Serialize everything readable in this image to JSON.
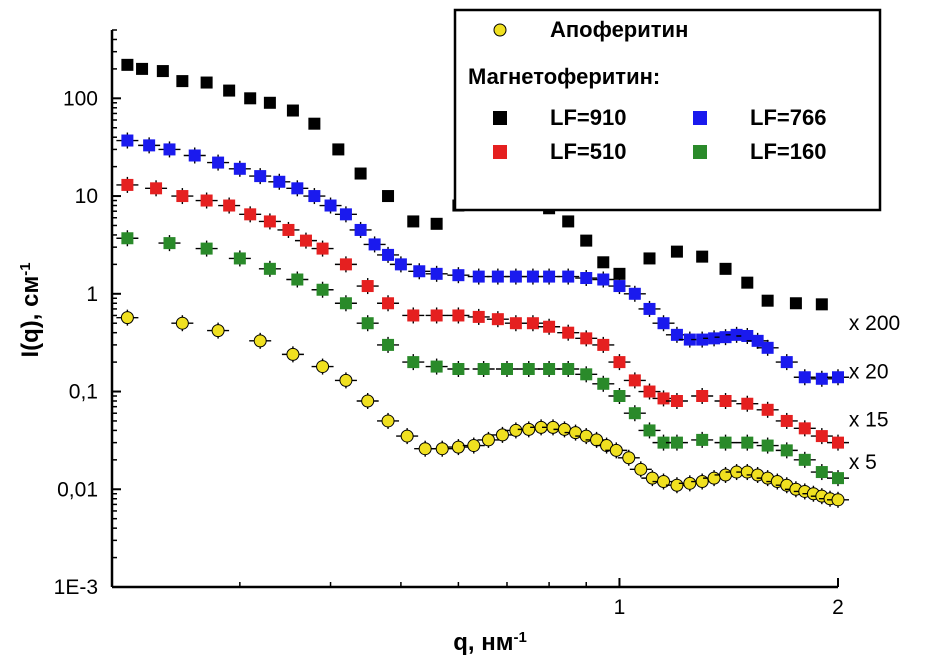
{
  "chart_data": {
    "type": "scatter",
    "xscale": "log",
    "yscale": "log",
    "xlim": [
      0.2,
      2
    ],
    "ylim": [
      0.001,
      500
    ],
    "xticks": [
      {
        "value": 1,
        "label": "1"
      },
      {
        "value": 2,
        "label": "2"
      }
    ],
    "yticks": [
      {
        "value": 100,
        "label": "100"
      },
      {
        "value": 10,
        "label": "10"
      },
      {
        "value": 1,
        "label": "1"
      },
      {
        "value": 0.1,
        "label": "0,1"
      },
      {
        "value": 0.01,
        "label": "0,01"
      },
      {
        "value": 0.001,
        "label": "1E-3"
      }
    ],
    "xlabel": "q, нм",
    "xlabel_sup": "-1",
    "ylabel": "I(q), см",
    "ylabel_sup": "-1",
    "grid": false,
    "legend": {
      "position": "top-right",
      "header": "Магнетоферитин:",
      "entries": [
        {
          "series": 0,
          "label": "Апоферитин"
        },
        {
          "series": 1,
          "label": "LF=910"
        },
        {
          "series": 2,
          "label": "LF=766"
        },
        {
          "series": 3,
          "label": "LF=510"
        },
        {
          "series": 4,
          "label": "LF=160"
        }
      ]
    },
    "annotations": [
      {
        "text": "x 200",
        "x": 1.98,
        "y": 0.5
      },
      {
        "text": "x 20",
        "x": 1.98,
        "y": 0.16
      },
      {
        "text": "x 15",
        "x": 1.98,
        "y": 0.052
      },
      {
        "text": "x 5",
        "x": 1.98,
        "y": 0.019
      }
    ],
    "series": [
      {
        "name": "Апоферитин",
        "marker": "circle",
        "color": "#f0e020",
        "errorbars": true,
        "x": [
          0.21,
          0.25,
          0.28,
          0.32,
          0.355,
          0.39,
          0.42,
          0.45,
          0.48,
          0.51,
          0.54,
          0.57,
          0.6,
          0.63,
          0.66,
          0.69,
          0.72,
          0.75,
          0.78,
          0.81,
          0.84,
          0.87,
          0.9,
          0.93,
          0.96,
          0.99,
          1.03,
          1.07,
          1.11,
          1.15,
          1.2,
          1.25,
          1.3,
          1.35,
          1.4,
          1.45,
          1.5,
          1.55,
          1.6,
          1.65,
          1.7,
          1.75,
          1.8,
          1.85,
          1.9,
          1.95,
          2.0
        ],
        "y": [
          0.57,
          0.5,
          0.42,
          0.33,
          0.24,
          0.18,
          0.13,
          0.08,
          0.05,
          0.035,
          0.026,
          0.026,
          0.027,
          0.028,
          0.032,
          0.036,
          0.04,
          0.041,
          0.043,
          0.043,
          0.041,
          0.038,
          0.035,
          0.032,
          0.028,
          0.025,
          0.021,
          0.016,
          0.013,
          0.012,
          0.011,
          0.0115,
          0.012,
          0.013,
          0.014,
          0.015,
          0.015,
          0.014,
          0.013,
          0.012,
          0.011,
          0.01,
          0.0095,
          0.009,
          0.0085,
          0.008,
          0.0078
        ]
      },
      {
        "name": "LF=910",
        "marker": "square",
        "color": "#000000",
        "errorbars": false,
        "x": [
          0.21,
          0.22,
          0.235,
          0.25,
          0.27,
          0.29,
          0.31,
          0.33,
          0.355,
          0.38,
          0.41,
          0.44,
          0.48,
          0.52,
          0.56,
          0.6,
          0.65,
          0.7,
          0.75,
          0.8,
          0.85,
          0.9,
          0.95,
          1.0,
          1.1,
          1.2,
          1.3,
          1.4,
          1.5,
          1.6,
          1.75,
          1.9
        ],
        "y": [
          220,
          200,
          190,
          150,
          145,
          120,
          100,
          90,
          75,
          55,
          30,
          17,
          10,
          5.5,
          5.2,
          8,
          9,
          10,
          9.5,
          7.5,
          5.5,
          3.5,
          2.1,
          1.6,
          2.3,
          2.7,
          2.4,
          1.8,
          1.3,
          0.85,
          0.8,
          0.78
        ]
      },
      {
        "name": "LF=766",
        "marker": "square",
        "color": "#1a1aee",
        "errorbars": true,
        "x": [
          0.21,
          0.225,
          0.24,
          0.26,
          0.28,
          0.3,
          0.32,
          0.34,
          0.36,
          0.38,
          0.4,
          0.42,
          0.44,
          0.46,
          0.48,
          0.5,
          0.53,
          0.56,
          0.6,
          0.64,
          0.68,
          0.72,
          0.76,
          0.8,
          0.85,
          0.9,
          0.95,
          1.0,
          1.05,
          1.1,
          1.15,
          1.2,
          1.25,
          1.3,
          1.35,
          1.4,
          1.45,
          1.5,
          1.55,
          1.6,
          1.7,
          1.8,
          1.9,
          2.0
        ],
        "y": [
          37,
          33,
          30,
          26,
          22,
          19,
          16,
          14,
          12,
          10,
          8,
          6.5,
          4.5,
          3.2,
          2.5,
          2.0,
          1.7,
          1.6,
          1.55,
          1.5,
          1.5,
          1.5,
          1.5,
          1.5,
          1.5,
          1.45,
          1.4,
          1.2,
          1.0,
          0.7,
          0.5,
          0.38,
          0.34,
          0.34,
          0.35,
          0.36,
          0.38,
          0.37,
          0.33,
          0.28,
          0.2,
          0.14,
          0.135,
          0.14
        ]
      },
      {
        "name": "LF=510",
        "marker": "square",
        "color": "#e52020",
        "errorbars": true,
        "x": [
          0.21,
          0.23,
          0.25,
          0.27,
          0.29,
          0.31,
          0.33,
          0.35,
          0.37,
          0.39,
          0.42,
          0.45,
          0.48,
          0.52,
          0.56,
          0.6,
          0.64,
          0.68,
          0.72,
          0.76,
          0.8,
          0.85,
          0.9,
          0.95,
          1.0,
          1.05,
          1.1,
          1.15,
          1.2,
          1.3,
          1.4,
          1.5,
          1.6,
          1.7,
          1.8,
          1.9,
          2.0
        ],
        "y": [
          13,
          12,
          10,
          9,
          8,
          6.5,
          5.5,
          4.5,
          3.5,
          2.9,
          2.0,
          1.2,
          0.8,
          0.6,
          0.6,
          0.6,
          0.58,
          0.55,
          0.5,
          0.5,
          0.46,
          0.4,
          0.35,
          0.3,
          0.2,
          0.13,
          0.1,
          0.085,
          0.08,
          0.09,
          0.08,
          0.075,
          0.065,
          0.05,
          0.042,
          0.035,
          0.03
        ]
      },
      {
        "name": "LF=160",
        "marker": "square",
        "color": "#2a8a2a",
        "errorbars": true,
        "x": [
          0.21,
          0.24,
          0.27,
          0.3,
          0.33,
          0.36,
          0.39,
          0.42,
          0.45,
          0.48,
          0.52,
          0.56,
          0.6,
          0.65,
          0.7,
          0.75,
          0.8,
          0.85,
          0.9,
          0.95,
          1.0,
          1.05,
          1.1,
          1.15,
          1.2,
          1.3,
          1.4,
          1.5,
          1.6,
          1.7,
          1.8,
          1.9,
          2.0
        ],
        "y": [
          3.7,
          3.3,
          2.9,
          2.3,
          1.8,
          1.4,
          1.1,
          0.8,
          0.5,
          0.3,
          0.2,
          0.18,
          0.17,
          0.17,
          0.17,
          0.17,
          0.17,
          0.17,
          0.15,
          0.12,
          0.09,
          0.06,
          0.04,
          0.03,
          0.03,
          0.032,
          0.03,
          0.03,
          0.028,
          0.025,
          0.02,
          0.015,
          0.013
        ]
      }
    ]
  }
}
